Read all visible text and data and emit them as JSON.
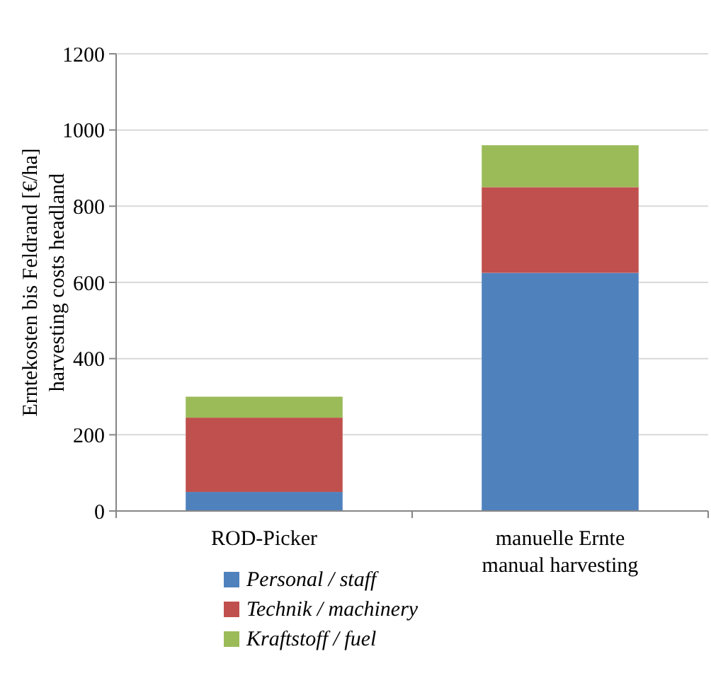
{
  "chart_data": {
    "type": "bar",
    "stacked": true,
    "ylabel": "Erntekosten bis Feldrand [€/ha]\nharvesting costs headland",
    "categories": [
      "ROD-Picker",
      "manuelle Ernte\nmanual harvesting"
    ],
    "series": [
      {
        "name": "Personal / staff",
        "color": "#4f81bd",
        "values": [
          50,
          625
        ]
      },
      {
        "name": "Technik / machinery",
        "color": "#c0504d",
        "values": [
          195,
          225
        ]
      },
      {
        "name": "Kraftstoff / fuel",
        "color": "#9bbb59",
        "values": [
          55,
          110
        ]
      }
    ],
    "ylim": [
      0,
      1200
    ],
    "yticks": [
      0,
      200,
      400,
      600,
      800,
      1000,
      1200
    ],
    "grid": "y",
    "legend": "bottom"
  }
}
